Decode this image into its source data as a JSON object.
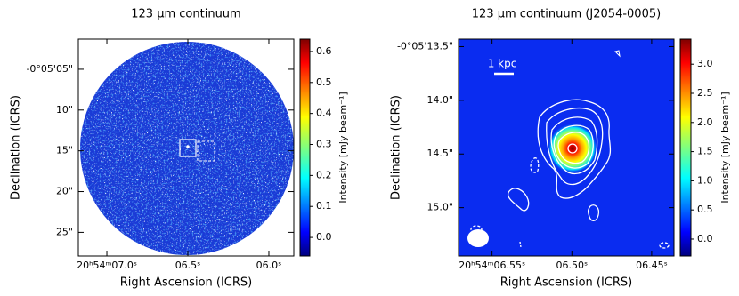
{
  "chart_data": [
    {
      "type": "image",
      "title": "123 μm continuum",
      "x_label": "Right Ascension (ICRS)",
      "y_label": "Declination (ICRS)",
      "colorbar_label": "Intensity [mJy beam⁻¹]",
      "xlim": [
        7.176,
        5.846
      ],
      "ylim": [
        27.9,
        1.3
      ],
      "xticks": [
        {
          "value": 7.0,
          "label": "20ʰ54ᵐ07.0ˢ"
        },
        {
          "value": 6.5,
          "label": "06.5ˢ"
        },
        {
          "value": 6.0,
          "label": "06.0ˢ"
        }
      ],
      "yticks": [
        {
          "value": 5,
          "label": "-0°05'05\""
        },
        {
          "value": 10,
          "label": "10\""
        },
        {
          "value": 15,
          "label": "15\""
        },
        {
          "value": 20,
          "label": "20\""
        },
        {
          "value": 25,
          "label": "25\""
        }
      ],
      "clim": [
        -0.06,
        0.64
      ],
      "cticks": [
        {
          "value": 0,
          "label": "0.0"
        },
        0.1,
        0.2,
        0.3,
        0.4,
        0.5,
        0.6
      ]
    },
    {
      "type": "image",
      "title": "123 μm continuum (J2054-0005)",
      "x_label": "Right Ascension (ICRS)",
      "y_label": "Declination (ICRS)",
      "colorbar_label": "Intensity [mJy beam⁻¹]",
      "scalebar_label": "1 kpc",
      "xlim": [
        6.571,
        6.436
      ],
      "ylim": [
        15.45,
        13.43
      ],
      "xticks": [
        {
          "value": 6.55,
          "label": "20ʰ54ᵐ06.55ˢ"
        },
        {
          "value": 6.5,
          "label": "06.50ˢ"
        },
        {
          "value": 6.45,
          "label": "06.45ˢ"
        }
      ],
      "yticks": [
        {
          "value": 13.5,
          "label": "-0°05'13.5\""
        },
        {
          "value": 14.0,
          "label": "14.0\""
        },
        {
          "value": 14.5,
          "label": "14.5\""
        },
        {
          "value": 15.0,
          "label": "15.0\""
        }
      ],
      "clim": [
        -0.29,
        3.43
      ],
      "cticks": [
        {
          "value": 0,
          "label": "0.0"
        },
        0.5,
        {
          "value": 1,
          "label": "1.0"
        },
        1.5,
        {
          "value": 2,
          "label": "2.0"
        },
        2.5,
        {
          "value": 3,
          "label": "3.0"
        }
      ]
    }
  ]
}
